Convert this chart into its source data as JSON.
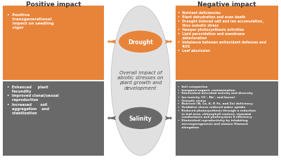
{
  "title_positive": "Positive impact",
  "title_negative": "Negative impact",
  "orange": "#E8843A",
  "gray": "#696969",
  "light_gray_ellipse": "#E0E0E0",
  "white": "#FFFFFF",
  "dark_text": "#333333",
  "drought_label": "Drought",
  "salinity_label": "Salinity",
  "center_text": "Overall impact of\nabiotic stresses on\nplant growth and\ndevelopment",
  "pos_top_text": "•  Positive\n    transgenerational\n    impact on seedling\n    vigor",
  "pos_bot_text": "•  Enhanced     plant\n    fecundity\n•  Improved clonal/sexual\n    reproduction\n•  Increased       soil\n    aggregation    and\n    stabilization",
  "neg_top_text": "•  Nutrient deficiencies\n•  Plant dehydration and even death\n•  Drought induced salt and ion accumulation,\n    thus osmotic stress\n•  Hamper photosynthesis activities\n•  Lipid peroxidation and membrane\n    deterioration\n•  Imbalance between antioxidant defenses and\n    ROS\n•  Leaf abscission",
  "neg_bot_text": "•  Soil compaction\n•  Inorganic/organic contamination\n•  Diminished microbial activity and diversity\n•  Ion toxicity (Cl⁻, Na⁺, and boron)\n•  Osmotic stress\n•  Nutrient (N, Ca, K, P, Fe, and Zn) deficiency\n•  Oxidative stress reduced water uptake\n•  Reduced photosynthesis through a reduction\n    in leaf area, chlorophyll content, stomatal\n    conductance and photosystem II efficiency\n•  Diminished reproductivity by inhabiting\n    microsporogenesis and stamen filament\n    elongation",
  "fig_w": 4.0,
  "fig_h": 2.32,
  "dpi": 100
}
